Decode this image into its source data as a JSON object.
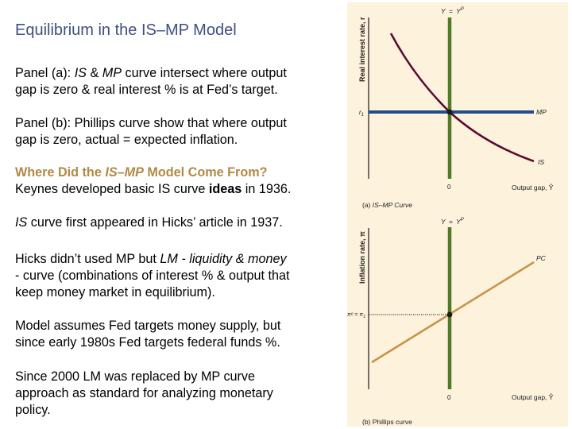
{
  "slide": {
    "title": "Equilibrium in the IS–MP Model",
    "paragraphs": [
      {
        "id": "panel-a",
        "lines": [
          [
            {
              "t": "Panel (a): "
            },
            {
              "t": "IS",
              "i": true
            },
            {
              "t": " & "
            },
            {
              "t": "MP",
              "i": true
            },
            {
              "t": " curve intersect where output"
            }
          ],
          [
            {
              "t": "gap is zero & real interest % is at Fed’s target."
            }
          ]
        ]
      },
      {
        "id": "panel-b",
        "lines": [
          [
            {
              "t": "Panel (b): Phillips curve show that where output"
            }
          ],
          [
            {
              "t": "gap is zero, actual = expected inflation."
            }
          ]
        ]
      },
      {
        "id": "history",
        "lines": [
          [
            {
              "t": "Where Did the ",
              "h": true
            },
            {
              "t": "IS–MP",
              "h": true,
              "i": true
            },
            {
              "t": " Model Come From?",
              "h": true
            }
          ],
          [
            {
              "t": "Keynes developed basic IS curve "
            },
            {
              "t": "ideas",
              "b": true
            },
            {
              "t": " in 1936."
            }
          ]
        ]
      },
      {
        "id": "hicks-1937",
        "lines": [
          [
            {
              "t": "IS",
              "i": true
            },
            {
              "t": " curve first appeared in Hicks’ article in 1937."
            }
          ]
        ]
      },
      {
        "id": "hicks-lm",
        "lines": [
          [
            {
              "t": "Hicks didn’t used MP but "
            },
            {
              "t": "LM - liquidity & money",
              "i": true
            }
          ],
          [
            {
              "t": "- curve (combinations of interest % & output that"
            }
          ],
          [
            {
              "t": "keep money market in equilibrium)."
            }
          ]
        ]
      },
      {
        "id": "fed-targets",
        "lines": [
          [
            {
              "t": "Model assumes Fed targets money supply, but"
            }
          ],
          [
            {
              "t": "since early 1980s Fed targets federal funds %."
            }
          ]
        ]
      },
      {
        "id": "since-2000",
        "lines": [
          [
            {
              "t": "Since 2000 LM was replaced by MP curve"
            }
          ],
          [
            {
              "t": "approach as standard for analyzing monetary"
            }
          ],
          [
            {
              "t": "policy."
            }
          ]
        ]
      }
    ]
  },
  "colors": {
    "title": "#3f4f7f",
    "heading": "#b08a46",
    "panel_bg": "#fdf2dc",
    "potential_output_line": "#4f7a28",
    "mp_line": "#1f4e8c",
    "is_curve": "#5c0a33",
    "pc_line": "#c8944a",
    "axis": "#1a1a1a"
  },
  "chart_data": [
    {
      "type": "line",
      "title": "(a) IS–MP Curve",
      "xlabel": "Output gap, Ỹ",
      "ylabel": "Real interest rate, r",
      "x_ticks": [
        "0"
      ],
      "y_ticks": [
        "r₁"
      ],
      "vertical_line_label": "Y = Y^P",
      "series": [
        {
          "name": "IS",
          "shape": "downward-sloping convex curve",
          "points": [
            [
              -1.0,
              1.0
            ],
            [
              0,
              0
            ],
            [
              1.0,
              -0.6
            ]
          ]
        },
        {
          "name": "MP",
          "shape": "horizontal line at r₁",
          "points": [
            [
              -1.0,
              0
            ],
            [
              1.0,
              0
            ]
          ]
        },
        {
          "name": "Y = Y^P",
          "shape": "vertical line at output gap 0"
        }
      ],
      "equilibrium": {
        "output_gap": 0,
        "real_rate": "r₁"
      }
    },
    {
      "type": "line",
      "title": "(b) Phillips curve",
      "xlabel": "Output gap, Ỹ",
      "ylabel": "Inflation rate, π",
      "x_ticks": [
        "0"
      ],
      "y_ticks": [
        "πᵉ = π₁"
      ],
      "vertical_line_label": "Y = Y^P",
      "series": [
        {
          "name": "PC",
          "shape": "upward-sloping line",
          "points": [
            [
              -1.0,
              -0.6
            ],
            [
              0,
              0
            ],
            [
              1.0,
              0.65
            ]
          ]
        },
        {
          "name": "Y = Y^P",
          "shape": "vertical line at output gap 0"
        }
      ],
      "equilibrium": {
        "output_gap": 0,
        "inflation": "πᵉ = π₁"
      }
    }
  ],
  "figure": {
    "panel_a": {
      "ylabel": "Real interest rate, r",
      "vline_label_y": "Y",
      "vline_label_eq": "=",
      "vline_label_yp": "Y",
      "vline_label_p": "P",
      "ytick": "r",
      "ytick_sub": "1",
      "mp_label": "MP",
      "is_label": "IS",
      "xtick": "0",
      "xlabel": "Output gap, Ỹ",
      "caption_prefix": "(a) ",
      "caption_italic": "IS–MP Curve"
    },
    "panel_b": {
      "ylabel": "Inflation rate, π",
      "vline_label_y": "Y",
      "vline_label_eq": "=",
      "vline_label_yp": "Y",
      "vline_label_p": "P",
      "ytick": "πᵉ = π",
      "ytick_sub": "1",
      "pc_label": "PC",
      "xtick": "0",
      "xlabel": "Output gap, Ỹ",
      "caption": "(b) Phillips curve"
    }
  }
}
